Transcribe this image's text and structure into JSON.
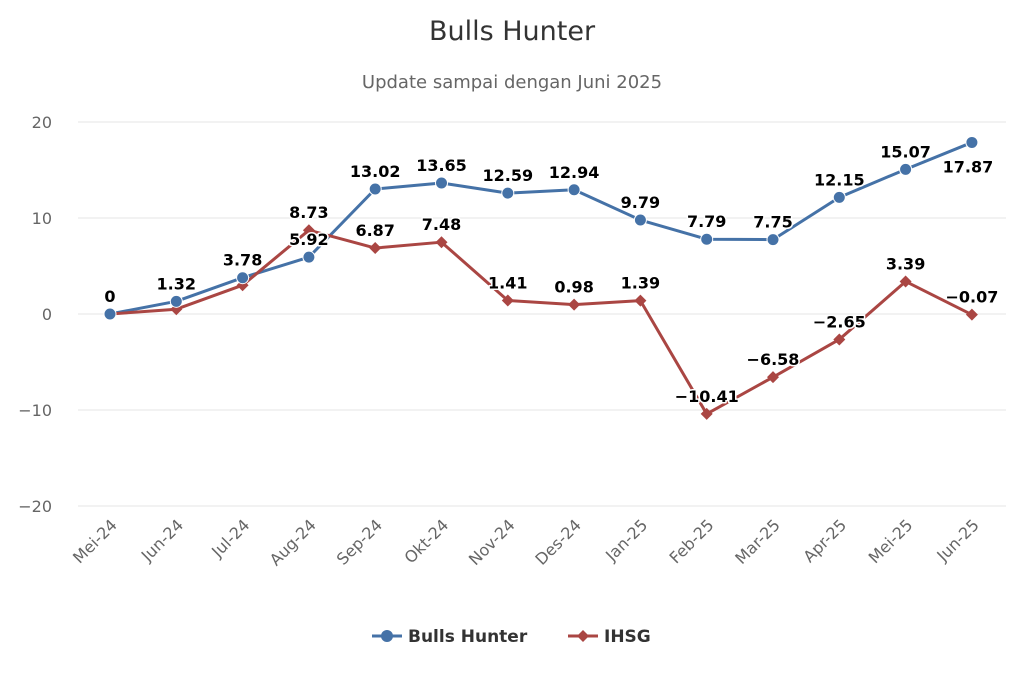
{
  "chart_data": {
    "type": "line",
    "title": "Bulls Hunter",
    "subtitle": "Update sampai dengan Juni 2025",
    "categories": [
      "Mei-24",
      "Jun-24",
      "Jul-24",
      "Aug-24",
      "Sep-24",
      "Okt-24",
      "Nov-24",
      "Des-24",
      "Jan-25",
      "Feb-25",
      "Mar-25",
      "Apr-25",
      "Mei-25",
      "Jun-25"
    ],
    "series": [
      {
        "name": "Bulls Hunter",
        "color": "#4572a7",
        "marker": "circle",
        "values": [
          0,
          1.32,
          3.78,
          5.92,
          13.02,
          13.65,
          12.59,
          12.94,
          9.79,
          7.79,
          7.75,
          12.15,
          15.07,
          17.87
        ],
        "labels": [
          "0",
          "1.32",
          "3.78",
          "5.92",
          "13.02",
          "13.65",
          "12.59",
          "12.94",
          "9.79",
          "7.79",
          "7.75",
          "12.15",
          "15.07",
          "17.87"
        ]
      },
      {
        "name": "IHSG",
        "color": "#aa4643",
        "marker": "diamond",
        "values": [
          0,
          0.5,
          3,
          8.73,
          6.87,
          7.48,
          1.41,
          0.98,
          1.39,
          -10.41,
          -6.58,
          -2.65,
          3.39,
          -0.07
        ],
        "labels": [
          "",
          "",
          "",
          "8.73",
          "6.87",
          "7.48",
          "1.41",
          "0.98",
          "1.39",
          "−10.41",
          "−6.58",
          "−2.65",
          "3.39",
          "−0.07"
        ]
      }
    ],
    "yticks": [
      20,
      10,
      0,
      -10,
      -20
    ],
    "ytick_labels": [
      "20",
      "10",
      "0",
      "−10",
      "−20"
    ],
    "ylim": [
      -20,
      20
    ],
    "grid": true,
    "legend_position": "bottom-center"
  }
}
